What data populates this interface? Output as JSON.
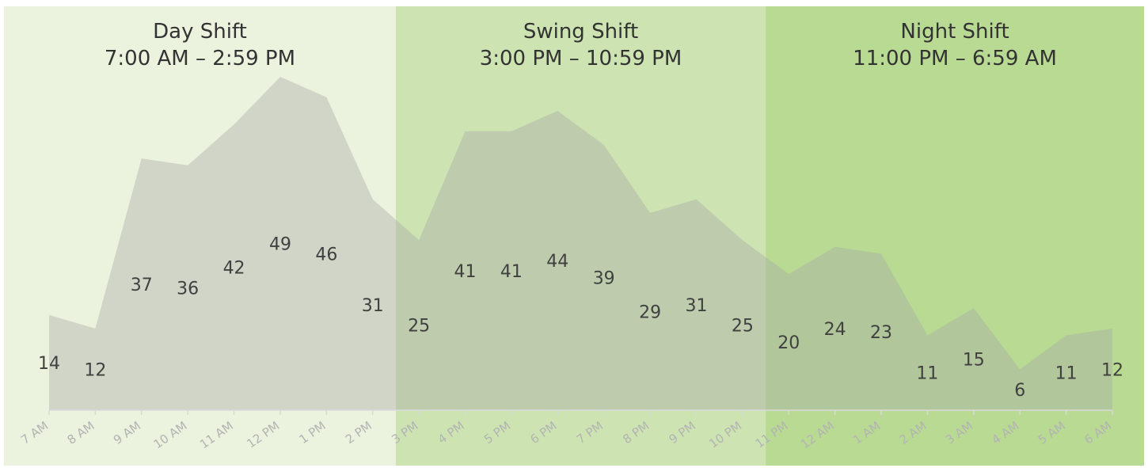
{
  "chart_data": {
    "type": "area",
    "categories": [
      "7 AM",
      "8 AM",
      "9 AM",
      "10 AM",
      "11 AM",
      "12 PM",
      "1 PM",
      "2 PM",
      "3 PM",
      "4 PM",
      "5 PM",
      "6 PM",
      "7 PM",
      "8 PM",
      "9 PM",
      "10 PM",
      "11 PM",
      "12 AM",
      "1 AM",
      "2 AM",
      "3 AM",
      "4 AM",
      "5 AM",
      "6 AM"
    ],
    "values": [
      14,
      12,
      37,
      36,
      42,
      49,
      46,
      31,
      25,
      41,
      41,
      44,
      39,
      29,
      31,
      25,
      20,
      24,
      23,
      11,
      15,
      6,
      11,
      12
    ],
    "ylim": [
      0,
      50
    ],
    "grid": false,
    "legend": "none",
    "bands": [
      {
        "title": "Day Shift",
        "subtitle": "7:00 AM – 2:59 PM",
        "from": "7 AM",
        "to": "2 PM"
      },
      {
        "title": "Swing Shift",
        "subtitle": "3:00 PM – 10:59 PM",
        "from": "3 PM",
        "to": "10 PM"
      },
      {
        "title": "Night Shift",
        "subtitle": "11:00 PM – 6:59 AM",
        "from": "11 PM",
        "to": "6 AM"
      }
    ],
    "colors": {
      "band_day": "#ebf3de",
      "band_swing": "#cde4b2",
      "band_night": "#b8da93",
      "area_fill": "#a6a6a6",
      "area_opacity": "0.38",
      "axis": "#d9d9d9",
      "label": "#404040",
      "tick_label": "#b3b3b3"
    }
  }
}
